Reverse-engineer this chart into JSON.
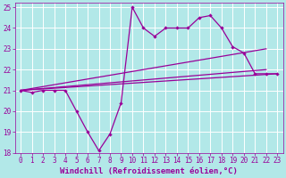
{
  "background_color": "#b2e8e8",
  "grid_color": "#ffffff",
  "line_color": "#990099",
  "marker_color": "#990099",
  "xlabel": "Windchill (Refroidissement éolien,°C)",
  "xlim": [
    -0.5,
    23.5
  ],
  "ylim": [
    18,
    25.2
  ],
  "yticks": [
    18,
    19,
    20,
    21,
    22,
    23,
    24,
    25
  ],
  "xticks": [
    0,
    1,
    2,
    3,
    4,
    5,
    6,
    7,
    8,
    9,
    10,
    11,
    12,
    13,
    14,
    15,
    16,
    17,
    18,
    19,
    20,
    21,
    22,
    23
  ],
  "series": [
    {
      "x": [
        0,
        1,
        2,
        3,
        4,
        5,
        6,
        7,
        8,
        9,
        10,
        11,
        12,
        13,
        14,
        15,
        16,
        17,
        18,
        19,
        20,
        21,
        22,
        23
      ],
      "y": [
        21.0,
        20.9,
        21.0,
        21.0,
        21.0,
        20.0,
        19.0,
        18.1,
        18.9,
        20.4,
        25.0,
        24.0,
        23.6,
        24.0,
        24.0,
        24.0,
        24.5,
        24.6,
        24.0,
        23.1,
        22.8,
        21.8,
        21.8,
        21.8
      ],
      "marker": true,
      "linewidth": 0.9
    },
    {
      "x": [
        0,
        22
      ],
      "y": [
        21.0,
        23.0
      ],
      "marker": false,
      "linewidth": 0.9
    },
    {
      "x": [
        0,
        22
      ],
      "y": [
        21.0,
        22.0
      ],
      "marker": false,
      "linewidth": 0.9
    },
    {
      "x": [
        0,
        23
      ],
      "y": [
        21.0,
        21.8
      ],
      "marker": false,
      "linewidth": 0.9
    }
  ],
  "font_family": "monospace",
  "xlabel_fontsize": 6.5,
  "tick_fontsize": 5.5,
  "tick_color": "#990099",
  "label_color": "#990099"
}
